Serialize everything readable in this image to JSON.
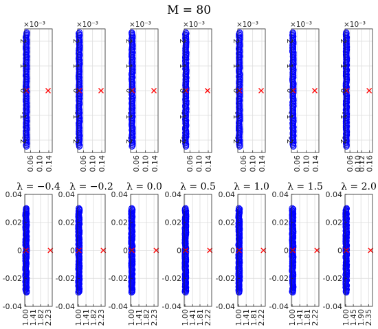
{
  "figure": {
    "title": "M = 80"
  },
  "chart_data": [
    {
      "type": "scatter",
      "row": "top",
      "lambda_label": "",
      "multiplier": "×10⁻³",
      "xlim": [
        0.035,
        0.155
      ],
      "ylim": [
        -0.0025,
        0.0025
      ],
      "x_ticks": [
        0.06,
        0.1,
        0.14
      ],
      "x_tick_labels": [
        "0.06",
        "0.10",
        "0.14"
      ],
      "y_ticks": [
        -0.002,
        -0.001,
        0,
        0.001,
        0.002
      ],
      "y_tick_labels": [
        "-2",
        "-1",
        "0",
        "1",
        "2"
      ],
      "grid": true,
      "series": [
        {
          "marker": "circle",
          "color": "#0000ff",
          "x_center": 0.042,
          "x_spread": 0.002,
          "y_range": [
            -0.00225,
            0.00235
          ],
          "count": 120
        },
        {
          "marker": "x",
          "color": "#ff0000",
          "points": [
            [
              0.042,
              0
            ],
            [
              0.137,
              0
            ]
          ]
        }
      ]
    },
    {
      "type": "scatter",
      "row": "top",
      "lambda_label": "",
      "multiplier": "×10⁻³",
      "xlim": [
        0.035,
        0.155
      ],
      "ylim": [
        -0.0025,
        0.0025
      ],
      "x_ticks": [
        0.06,
        0.1,
        0.14
      ],
      "x_tick_labels": [
        "0.06",
        "0.10",
        "0.14"
      ],
      "y_ticks": [
        -0.002,
        -0.001,
        0,
        0.001,
        0.002
      ],
      "y_tick_labels": [
        "-2",
        "-1",
        "0",
        "1",
        "2"
      ],
      "grid": true,
      "series": [
        {
          "marker": "circle",
          "color": "#0000ff",
          "x_center": 0.042,
          "x_spread": 0.002,
          "y_range": [
            -0.00225,
            0.00235
          ],
          "count": 120
        },
        {
          "marker": "x",
          "color": "#ff0000",
          "points": [
            [
              0.042,
              0
            ],
            [
              0.137,
              0
            ]
          ]
        }
      ]
    },
    {
      "type": "scatter",
      "row": "top",
      "lambda_label": "",
      "multiplier": "×10⁻³",
      "xlim": [
        0.035,
        0.155
      ],
      "ylim": [
        -0.0025,
        0.0025
      ],
      "x_ticks": [
        0.06,
        0.1,
        0.14
      ],
      "x_tick_labels": [
        "0.06",
        "0.10",
        "0.14"
      ],
      "y_ticks": [
        -0.002,
        -0.001,
        0,
        0.001,
        0.002
      ],
      "y_tick_labels": [
        "-2",
        "-1",
        "0",
        "1",
        "2"
      ],
      "grid": true,
      "series": [
        {
          "marker": "circle",
          "color": "#0000ff",
          "x_center": 0.042,
          "x_spread": 0.002,
          "y_range": [
            -0.00225,
            0.00235
          ],
          "count": 120
        },
        {
          "marker": "x",
          "color": "#ff0000",
          "points": [
            [
              0.042,
              0
            ],
            [
              0.137,
              0
            ]
          ]
        }
      ]
    },
    {
      "type": "scatter",
      "row": "top",
      "lambda_label": "",
      "multiplier": "×10⁻³",
      "xlim": [
        0.035,
        0.155
      ],
      "ylim": [
        -0.0025,
        0.0025
      ],
      "x_ticks": [
        0.06,
        0.1,
        0.14
      ],
      "x_tick_labels": [
        "0.06",
        "0.10",
        "0.14"
      ],
      "y_ticks": [
        -0.002,
        -0.001,
        0,
        0.001,
        0.002
      ],
      "y_tick_labels": [
        "-2",
        "-1",
        "0",
        "1",
        "2"
      ],
      "grid": true,
      "series": [
        {
          "marker": "circle",
          "color": "#0000ff",
          "x_center": 0.042,
          "x_spread": 0.002,
          "y_range": [
            -0.00225,
            0.00235
          ],
          "count": 120
        },
        {
          "marker": "x",
          "color": "#ff0000",
          "points": [
            [
              0.042,
              0
            ],
            [
              0.137,
              0
            ]
          ]
        }
      ]
    },
    {
      "type": "scatter",
      "row": "top",
      "lambda_label": "",
      "multiplier": "×10⁻³",
      "xlim": [
        0.035,
        0.155
      ],
      "ylim": [
        -0.0025,
        0.0025
      ],
      "x_ticks": [
        0.06,
        0.1,
        0.14
      ],
      "x_tick_labels": [
        "0.06",
        "0.10",
        "0.14"
      ],
      "y_ticks": [
        -0.002,
        -0.001,
        0,
        0.001,
        0.002
      ],
      "y_tick_labels": [
        "-2",
        "-1",
        "0",
        "1",
        "2"
      ],
      "grid": true,
      "series": [
        {
          "marker": "circle",
          "color": "#0000ff",
          "x_center": 0.042,
          "x_spread": 0.002,
          "y_range": [
            -0.00225,
            0.00235
          ],
          "count": 120
        },
        {
          "marker": "x",
          "color": "#ff0000",
          "points": [
            [
              0.042,
              0
            ],
            [
              0.137,
              0
            ]
          ]
        }
      ]
    },
    {
      "type": "scatter",
      "row": "top",
      "lambda_label": "",
      "multiplier": "×10⁻³",
      "xlim": [
        0.035,
        0.155
      ],
      "ylim": [
        -0.0025,
        0.0025
      ],
      "x_ticks": [
        0.06,
        0.1,
        0.14
      ],
      "x_tick_labels": [
        "0.06",
        "0.10",
        "0.14"
      ],
      "y_ticks": [
        -0.002,
        -0.001,
        0,
        0.001,
        0.002
      ],
      "y_tick_labels": [
        "-2",
        "-1",
        "0",
        "1",
        "2"
      ],
      "grid": true,
      "series": [
        {
          "marker": "circle",
          "color": "#0000ff",
          "x_center": 0.042,
          "x_spread": 0.002,
          "y_range": [
            -0.00225,
            0.00235
          ],
          "count": 120
        },
        {
          "marker": "x",
          "color": "#ff0000",
          "points": [
            [
              0.042,
              0
            ],
            [
              0.137,
              0
            ]
          ]
        }
      ]
    },
    {
      "type": "scatter",
      "row": "top",
      "lambda_label": "",
      "multiplier": "×10⁻³",
      "xlim": [
        0.035,
        0.175
      ],
      "ylim": [
        -0.0025,
        0.0025
      ],
      "x_ticks": [
        0.06,
        0.1,
        0.12,
        0.16
      ],
      "x_tick_labels": [
        "0.06",
        "0.10",
        "0.12",
        "0.16"
      ],
      "y_ticks": [
        -0.002,
        -0.001,
        0,
        0.001,
        0.002
      ],
      "y_tick_labels": [
        "-2",
        "-1",
        "0",
        "1",
        "2"
      ],
      "grid": true,
      "series": [
        {
          "marker": "circle",
          "color": "#0000ff",
          "x_center": 0.042,
          "x_spread": 0.002,
          "y_range": [
            -0.00225,
            0.00235
          ],
          "count": 120
        },
        {
          "marker": "x",
          "color": "#ff0000",
          "points": [
            [
              0.042,
              0
            ],
            [
              0.158,
              0
            ]
          ]
        }
      ]
    },
    {
      "type": "scatter",
      "row": "bottom",
      "lambda_label": "λ = −0.4",
      "multiplier": "",
      "xlim": [
        0.96,
        2.45
      ],
      "ylim": [
        -0.04,
        0.04
      ],
      "x_ticks": [
        1.0,
        1.41,
        1.82,
        2.23
      ],
      "x_tick_labels": [
        "1.00",
        "1.41",
        "1.82",
        "2.23"
      ],
      "y_ticks": [
        -0.04,
        -0.02,
        0,
        0.02,
        0.04
      ],
      "y_tick_labels": [
        "-0.04",
        "-0.02",
        "0",
        "0.02",
        "0.04"
      ],
      "grid": true,
      "series": [
        {
          "marker": "circle",
          "color": "#0000ff",
          "x_center": 1.03,
          "x_spread": 0.03,
          "y_range": [
            -0.03,
            0.03
          ],
          "count": 120
        },
        {
          "marker": "x",
          "color": "#ff0000",
          "points": [
            [
              1.03,
              0
            ],
            [
              2.35,
              0
            ]
          ]
        }
      ]
    },
    {
      "type": "scatter",
      "row": "bottom",
      "lambda_label": "λ = −0.2",
      "multiplier": "",
      "xlim": [
        0.96,
        2.45
      ],
      "ylim": [
        -0.04,
        0.04
      ],
      "x_ticks": [
        1.0,
        1.41,
        1.82,
        2.23
      ],
      "x_tick_labels": [
        "1.00",
        "1.41",
        "1.82",
        "2.23"
      ],
      "y_ticks": [
        -0.04,
        -0.02,
        0,
        0.02,
        0.04
      ],
      "y_tick_labels": [
        "-0.04",
        "-0.02",
        "0",
        "0.02",
        "0.04"
      ],
      "grid": true,
      "series": [
        {
          "marker": "circle",
          "color": "#0000ff",
          "x_center": 1.03,
          "x_spread": 0.03,
          "y_range": [
            -0.03,
            0.03
          ],
          "count": 120
        },
        {
          "marker": "x",
          "color": "#ff0000",
          "points": [
            [
              1.03,
              0
            ],
            [
              2.35,
              0
            ]
          ]
        }
      ]
    },
    {
      "type": "scatter",
      "row": "bottom",
      "lambda_label": "λ = 0.0",
      "multiplier": "",
      "xlim": [
        0.96,
        2.45
      ],
      "ylim": [
        -0.04,
        0.04
      ],
      "x_ticks": [
        1.0,
        1.41,
        1.82,
        2.23
      ],
      "x_tick_labels": [
        "1.00",
        "1.41",
        "1.82",
        "2.23"
      ],
      "y_ticks": [
        -0.04,
        -0.02,
        0,
        0.02,
        0.04
      ],
      "y_tick_labels": [
        "-0.04",
        "-0.02",
        "0",
        "0.02",
        "0.04"
      ],
      "grid": true,
      "series": [
        {
          "marker": "circle",
          "color": "#0000ff",
          "x_center": 1.03,
          "x_spread": 0.03,
          "y_range": [
            -0.03,
            0.03
          ],
          "count": 120
        },
        {
          "marker": "x",
          "color": "#ff0000",
          "points": [
            [
              1.03,
              0
            ],
            [
              2.35,
              0
            ]
          ]
        }
      ]
    },
    {
      "type": "scatter",
      "row": "bottom",
      "lambda_label": "λ = 0.5",
      "multiplier": "",
      "xlim": [
        0.96,
        2.44
      ],
      "ylim": [
        -0.04,
        0.04
      ],
      "x_ticks": [
        1.0,
        1.41,
        1.81,
        2.22
      ],
      "x_tick_labels": [
        "1.00",
        "1.41",
        "1.81",
        "2.22"
      ],
      "y_ticks": [
        -0.04,
        -0.02,
        0,
        0.02,
        0.04
      ],
      "y_tick_labels": [
        "-0.04",
        "-0.02",
        "0",
        "0.02",
        "0.04"
      ],
      "grid": true,
      "series": [
        {
          "marker": "circle",
          "color": "#0000ff",
          "x_center": 1.03,
          "x_spread": 0.03,
          "y_range": [
            -0.03,
            0.03
          ],
          "count": 120
        },
        {
          "marker": "x",
          "color": "#ff0000",
          "points": [
            [
              1.03,
              0
            ],
            [
              2.34,
              0
            ]
          ]
        }
      ]
    },
    {
      "type": "scatter",
      "row": "bottom",
      "lambda_label": "λ = 1.0",
      "multiplier": "",
      "xlim": [
        0.96,
        2.44
      ],
      "ylim": [
        -0.04,
        0.04
      ],
      "x_ticks": [
        1.0,
        1.41,
        1.81,
        2.22
      ],
      "x_tick_labels": [
        "1.00",
        "1.41",
        "1.81",
        "2.22"
      ],
      "y_ticks": [
        -0.04,
        -0.02,
        0,
        0.02,
        0.04
      ],
      "y_tick_labels": [
        "-0.04",
        "-0.02",
        "0",
        "0.02",
        "0.04"
      ],
      "grid": true,
      "series": [
        {
          "marker": "circle",
          "color": "#0000ff",
          "x_center": 1.03,
          "x_spread": 0.03,
          "y_range": [
            -0.03,
            0.03
          ],
          "count": 120
        },
        {
          "marker": "x",
          "color": "#ff0000",
          "points": [
            [
              1.03,
              0
            ],
            [
              2.34,
              0
            ]
          ]
        }
      ]
    },
    {
      "type": "scatter",
      "row": "bottom",
      "lambda_label": "λ = 1.5",
      "multiplier": "",
      "xlim": [
        0.96,
        2.44
      ],
      "ylim": [
        -0.04,
        0.04
      ],
      "x_ticks": [
        1.0,
        1.41,
        1.81,
        2.22
      ],
      "x_tick_labels": [
        "1.00",
        "1.41",
        "1.81",
        "2.22"
      ],
      "y_ticks": [
        -0.04,
        -0.02,
        0,
        0.02,
        0.04
      ],
      "y_tick_labels": [
        "-0.04",
        "-0.02",
        "0",
        "0.02",
        "0.04"
      ],
      "grid": true,
      "series": [
        {
          "marker": "circle",
          "color": "#0000ff",
          "x_center": 1.03,
          "x_spread": 0.03,
          "y_range": [
            -0.03,
            0.03
          ],
          "count": 120
        },
        {
          "marker": "x",
          "color": "#ff0000",
          "points": [
            [
              1.03,
              0
            ],
            [
              2.34,
              0
            ]
          ]
        }
      ]
    },
    {
      "type": "scatter",
      "row": "bottom",
      "lambda_label": "λ = 2.0",
      "multiplier": "",
      "xlim": [
        0.96,
        2.58
      ],
      "ylim": [
        -0.04,
        0.04
      ],
      "x_ticks": [
        1.0,
        1.45,
        1.9,
        2.35
      ],
      "x_tick_labels": [
        "1.00",
        "1.45",
        "1.90",
        "2.35"
      ],
      "y_ticks": [
        -0.04,
        -0.02,
        0,
        0.02,
        0.04
      ],
      "y_tick_labels": [
        "-0.04",
        "-0.02",
        "0",
        "0.02",
        "0.04"
      ],
      "grid": true,
      "series": [
        {
          "marker": "circle",
          "color": "#0000ff",
          "x_center": 1.03,
          "x_spread": 0.03,
          "y_range": [
            -0.03,
            0.03
          ],
          "count": 120
        },
        {
          "marker": "x",
          "color": "#ff0000",
          "points": [
            [
              1.03,
              0
            ],
            [
              2.47,
              0
            ]
          ]
        }
      ]
    }
  ]
}
